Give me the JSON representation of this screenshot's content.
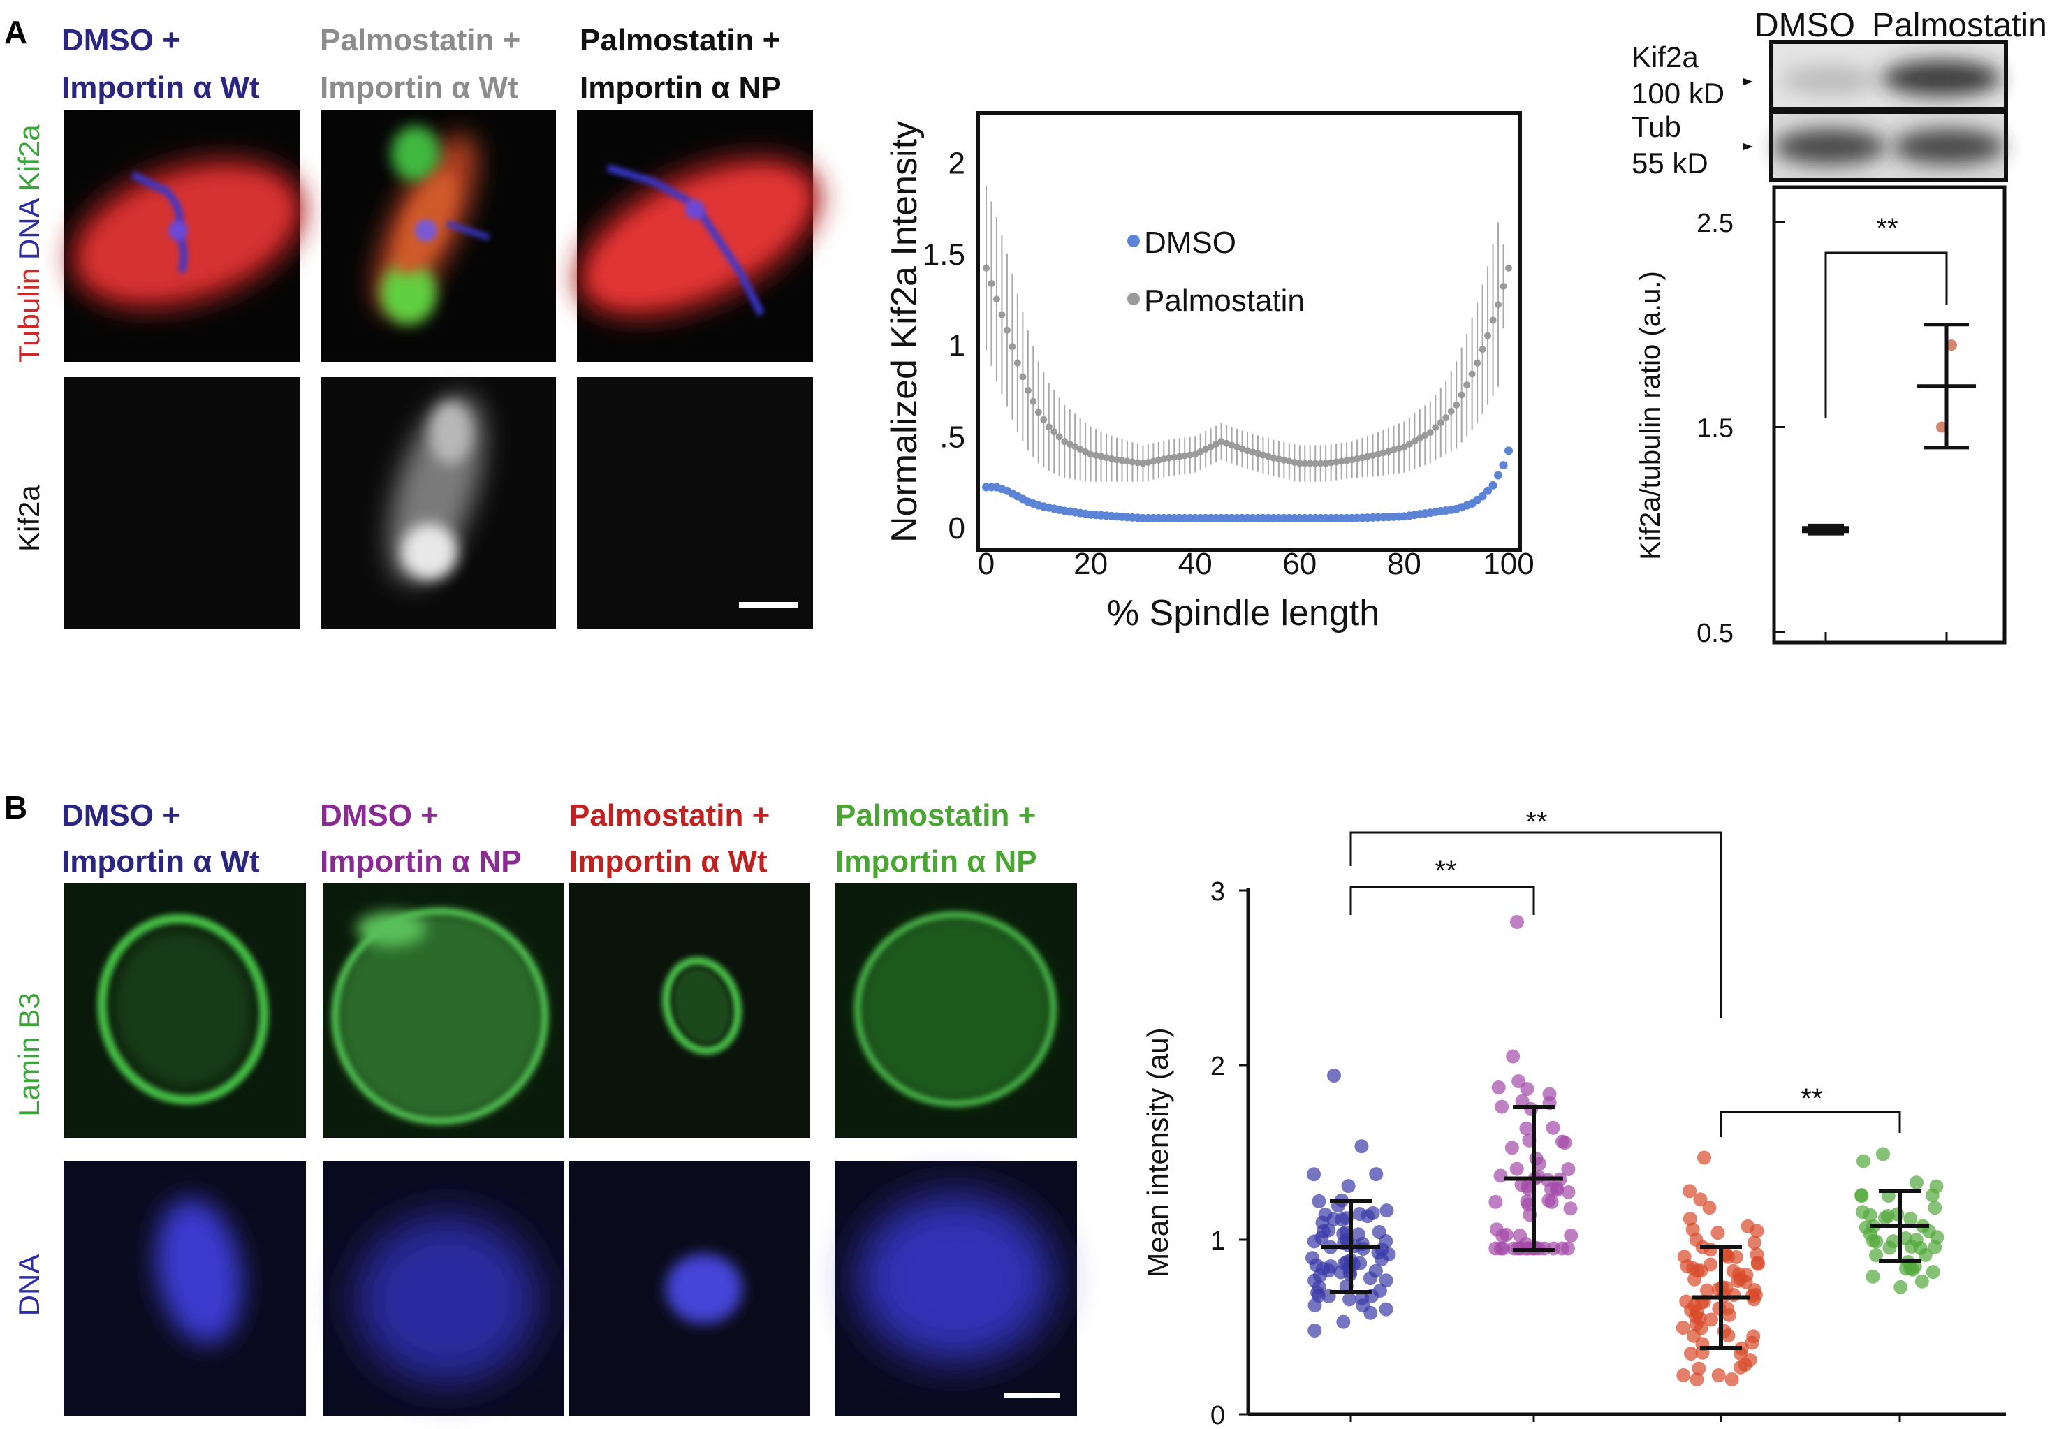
{
  "panelA": {
    "letter": "A",
    "columns": [
      {
        "line1": "DMSO +",
        "line2": "Importin α Wt",
        "color": "#2a2580"
      },
      {
        "line1": "Palmostatin +",
        "line2": "Importin α Wt",
        "color": "#8c8c8c"
      },
      {
        "line1": "Palmostatin +",
        "line2": "Importin α NP",
        "color": "#111111"
      }
    ],
    "row_label_top": [
      {
        "text": "Tubulin",
        "color": "#cc2a2a"
      },
      {
        "text": " DNA",
        "color": "#2d2ea8"
      },
      {
        "text": " Kif2a",
        "color": "#3aa53a"
      }
    ],
    "row_label_bottom": "Kif2a",
    "colors": {
      "tubulin": "#d93030",
      "dna": "#3b3bd8",
      "kif2a": "#40c040"
    }
  },
  "chartA": {
    "type": "line",
    "xlabel": "% Spindle length",
    "ylabel": "Normalized Kif2a Intensity",
    "xlim": [
      0,
      100
    ],
    "ylim": [
      0,
      2.2
    ],
    "xticks": [
      "0",
      "20",
      "40",
      "60",
      "80",
      "100"
    ],
    "yticks": [
      "0",
      ".5",
      "1",
      "1.5",
      "2"
    ],
    "ytick_values": [
      0,
      0.5,
      1,
      1.5,
      2
    ],
    "xtick_values": [
      0,
      20,
      40,
      60,
      80,
      100
    ],
    "legend_position": "top-center",
    "series": [
      {
        "name": "DMSO",
        "color": "#5b84d6",
        "x": [
          0,
          2,
          4,
          6,
          8,
          10,
          15,
          20,
          25,
          30,
          40,
          50,
          60,
          70,
          80,
          85,
          90,
          93,
          95,
          97,
          99,
          100
        ],
        "y": [
          0.22,
          0.22,
          0.2,
          0.17,
          0.14,
          0.12,
          0.09,
          0.07,
          0.06,
          0.05,
          0.05,
          0.05,
          0.05,
          0.05,
          0.06,
          0.08,
          0.1,
          0.13,
          0.17,
          0.23,
          0.34,
          0.42
        ],
        "err": 0.02
      },
      {
        "name": "Palmostatin",
        "color": "#9a9a9a",
        "x": [
          0,
          2,
          4,
          6,
          8,
          10,
          12,
          15,
          20,
          25,
          30,
          35,
          40,
          45,
          50,
          55,
          60,
          65,
          70,
          75,
          80,
          85,
          88,
          90,
          92,
          94,
          96,
          98,
          100
        ],
        "y": [
          1.42,
          1.25,
          1.08,
          0.9,
          0.75,
          0.63,
          0.55,
          0.47,
          0.4,
          0.37,
          0.35,
          0.38,
          0.4,
          0.47,
          0.42,
          0.38,
          0.35,
          0.35,
          0.37,
          0.4,
          0.44,
          0.52,
          0.6,
          0.67,
          0.78,
          0.9,
          1.05,
          1.22,
          1.42
        ],
        "err": [
          0.45,
          0.45,
          0.42,
          0.38,
          0.33,
          0.28,
          0.24,
          0.2,
          0.15,
          0.12,
          0.1,
          0.1,
          0.1,
          0.1,
          0.1,
          0.1,
          0.1,
          0.1,
          0.1,
          0.12,
          0.14,
          0.17,
          0.2,
          0.24,
          0.28,
          0.33,
          0.38,
          0.45,
          0.01
        ]
      }
    ]
  },
  "westernA": {
    "header": [
      "DMSO",
      "Palmostatin"
    ],
    "bands": [
      {
        "label1": "Kif2a",
        "label2": "100 kD"
      },
      {
        "label1": "Tub",
        "label2": "55 kD"
      }
    ]
  },
  "chartA2": {
    "type": "scatter",
    "ylabel": "Kif2a/tubulin ratio (a.u.)",
    "ylim": [
      0.5,
      2.5
    ],
    "yticks": [
      "2.5",
      "1.5",
      "0.5"
    ],
    "ytick_values": [
      2.5,
      1.5,
      0.5
    ],
    "groups": [
      {
        "name": "DMSO",
        "mean": 1.0,
        "sd": 0.02,
        "points": [
          1.0,
          1.0
        ],
        "color": "#4a4aa8"
      },
      {
        "name": "Palmostatin",
        "mean": 1.7,
        "sd": 0.3,
        "points": [
          1.9,
          1.5
        ],
        "color": "#c86a4a"
      }
    ],
    "significance": "**"
  },
  "panelB": {
    "letter": "B",
    "columns": [
      {
        "line1": "DMSO +",
        "line2": "Importin α Wt",
        "color": "#2a2580"
      },
      {
        "line1": "DMSO +",
        "line2": "Importin α NP",
        "color": "#8a2a92"
      },
      {
        "line1": "Palmostatin +",
        "line2": "Importin α Wt",
        "color": "#c2201f"
      },
      {
        "line1": "Palmostatin +",
        "line2": "Importin α NP",
        "color": "#4aa632"
      }
    ],
    "row_label_top": {
      "text": "Lamin B3",
      "color": "#3aa53a"
    },
    "row_label_bottom": {
      "text": "DNA",
      "color": "#2d2ea8"
    }
  },
  "chartB": {
    "type": "scatter",
    "ylabel": "Mean intensity (au)",
    "ylim": [
      0,
      3
    ],
    "yticks": [
      "0",
      "1",
      "2",
      "3"
    ],
    "ytick_values": [
      0,
      1,
      2,
      3
    ],
    "groups": [
      {
        "name": "DMSO + Importin α Wt",
        "color": "#3b3ba8",
        "mean": 0.96,
        "sd": 0.26,
        "n": 70,
        "min": 0.48,
        "max": 1.55,
        "outlier": 1.94
      },
      {
        "name": "DMSO + Importin α NP",
        "color": "#a24aa8",
        "mean": 1.35,
        "sd": 0.41,
        "n": 60,
        "min": 0.95,
        "max": 2.05,
        "outlier": 2.82
      },
      {
        "name": "Palmostatin + Importin α Wt",
        "color": "#d94a2a",
        "mean": 0.67,
        "sd": 0.29,
        "n": 75,
        "min": 0.2,
        "max": 1.46,
        "outlier": 1.47
      },
      {
        "name": "Palmostatin + Importin α NP",
        "color": "#52a83a",
        "mean": 1.08,
        "sd": 0.2,
        "n": 40,
        "min": 0.65,
        "max": 1.45,
        "outlier": 1.49
      }
    ],
    "significance": [
      {
        "from": 0,
        "to": 1,
        "label": "**"
      },
      {
        "from": 0,
        "to": 2,
        "label": "**"
      },
      {
        "from": 2,
        "to": 3,
        "label": "**"
      }
    ]
  }
}
